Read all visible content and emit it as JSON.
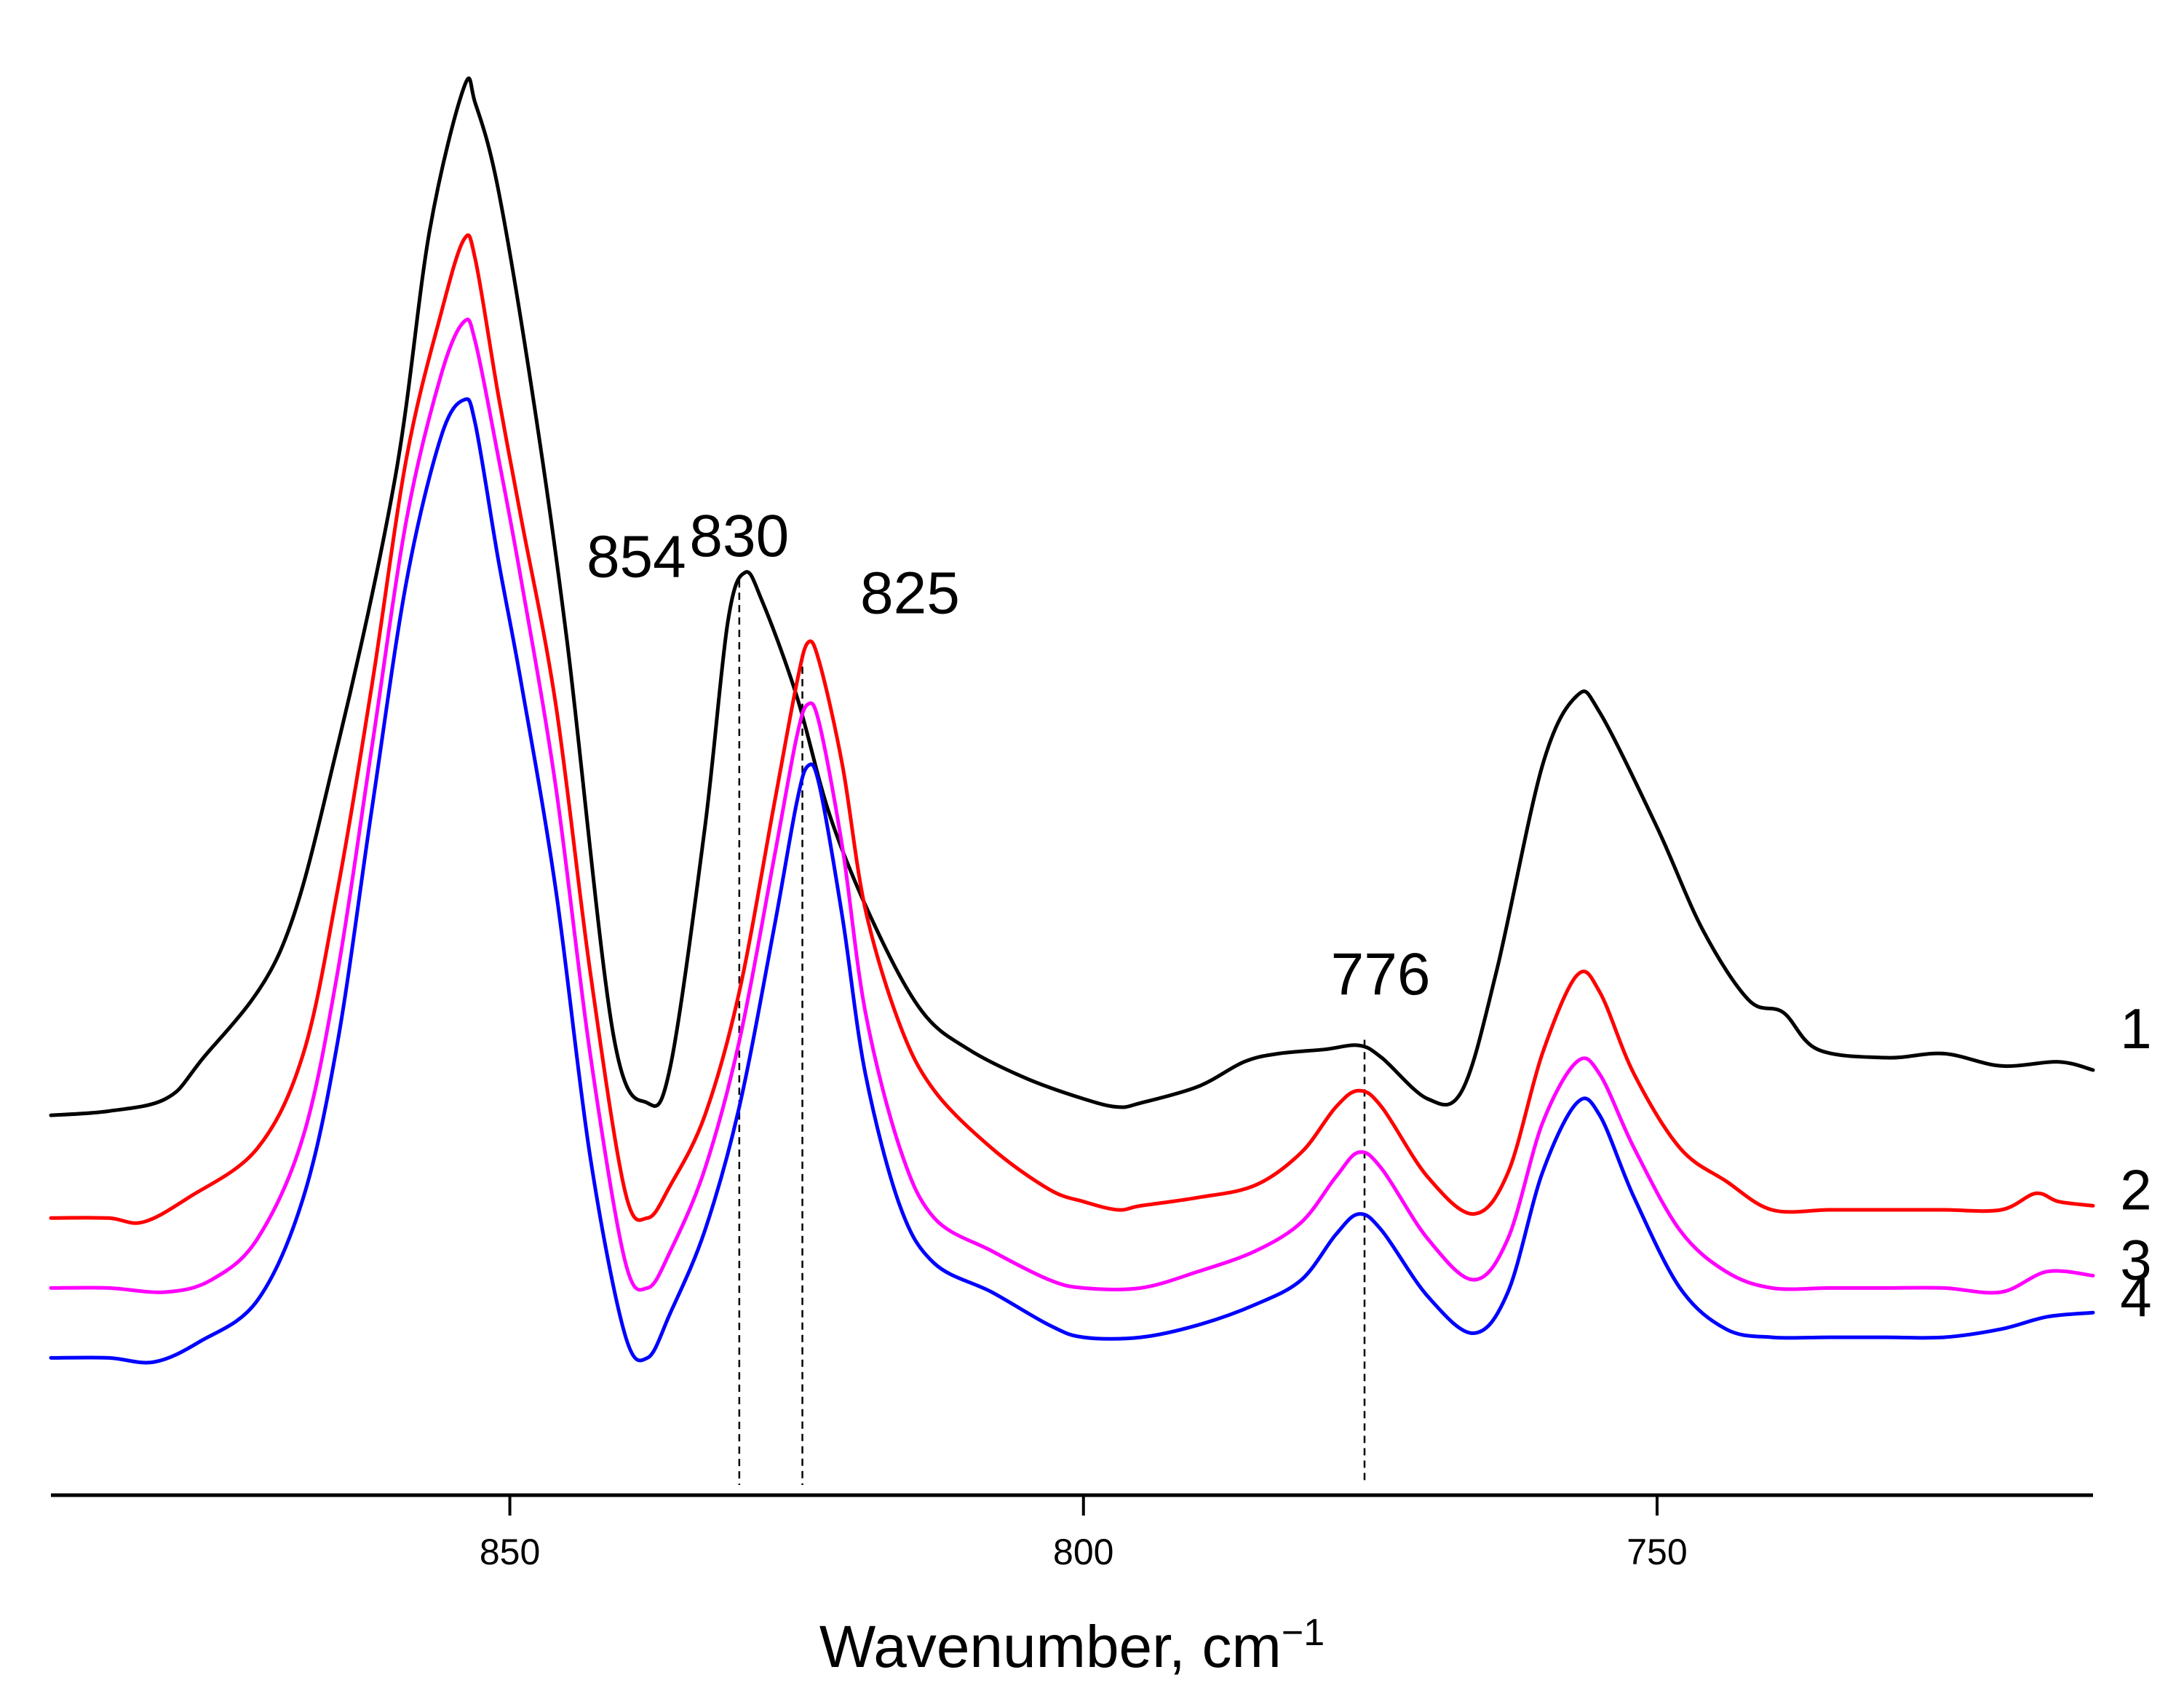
{
  "chart_data": {
    "type": "line",
    "title": "",
    "xlabel": "Wavenumber, cm",
    "xlabel_superscript": "−1",
    "ylabel": "",
    "x_reversed": true,
    "xlim": [
      890,
      712
    ],
    "xticks": [
      850,
      800,
      750
    ],
    "xtick_labels": [
      "850",
      "800",
      "750"
    ],
    "y_axis_shown": false,
    "grid": false,
    "peak_labels": [
      {
        "text": "854",
        "x": 845
      },
      {
        "text": "830",
        "x": 830
      },
      {
        "text": "825",
        "x": 824
      },
      {
        "text": "776",
        "x": 776
      }
    ],
    "reference_lines_x": [
      830,
      824.5,
      775.5
    ],
    "series": [
      {
        "name": "1",
        "color": "#000000",
        "points": [
          [
            890,
            0.8
          ],
          [
            885,
            0.81
          ],
          [
            880,
            0.84
          ],
          [
            877,
            0.93
          ],
          [
            870,
            1.2
          ],
          [
            865,
            1.7
          ],
          [
            860,
            2.35
          ],
          [
            857,
            2.95
          ],
          [
            854,
            3.3
          ],
          [
            853,
            3.26
          ],
          [
            851,
            3.05
          ],
          [
            848,
            2.55
          ],
          [
            845,
            1.95
          ],
          [
            841,
            1.0
          ],
          [
            838,
            0.83
          ],
          [
            836,
            0.92
          ],
          [
            833,
            1.5
          ],
          [
            831,
            2.0
          ],
          [
            829.5,
            2.12
          ],
          [
            828,
            2.05
          ],
          [
            825,
            1.82
          ],
          [
            822,
            1.52
          ],
          [
            818,
            1.25
          ],
          [
            814,
            1.05
          ],
          [
            810,
            0.96
          ],
          [
            805,
            0.89
          ],
          [
            800,
            0.84
          ],
          [
            797,
            0.82
          ],
          [
            795,
            0.83
          ],
          [
            790,
            0.87
          ],
          [
            786,
            0.93
          ],
          [
            783,
            0.95
          ],
          [
            779,
            0.96
          ],
          [
            776,
            0.97
          ],
          [
            774,
            0.94
          ],
          [
            770,
            0.84
          ],
          [
            767,
            0.86
          ],
          [
            764,
            1.15
          ],
          [
            760,
            1.65
          ],
          [
            757,
            1.82
          ],
          [
            755,
            1.78
          ],
          [
            750,
            1.5
          ],
          [
            746,
            1.25
          ],
          [
            742,
            1.08
          ],
          [
            739,
            1.05
          ],
          [
            736,
            0.96
          ],
          [
            730,
            0.94
          ],
          [
            725,
            0.95
          ],
          [
            720,
            0.92
          ],
          [
            715,
            0.93
          ],
          [
            712,
            0.91
          ]
        ]
      },
      {
        "name": "2",
        "color": "#ff0000",
        "points": [
          [
            890,
            0.55
          ],
          [
            885,
            0.55
          ],
          [
            882,
            0.54
          ],
          [
            878,
            0.6
          ],
          [
            872,
            0.72
          ],
          [
            868,
            0.95
          ],
          [
            865,
            1.35
          ],
          [
            862,
            1.85
          ],
          [
            859,
            2.4
          ],
          [
            856,
            2.75
          ],
          [
            854,
            2.93
          ],
          [
            853,
            2.88
          ],
          [
            851,
            2.55
          ],
          [
            849,
            2.25
          ],
          [
            846,
            1.8
          ],
          [
            843,
            1.15
          ],
          [
            840,
            0.62
          ],
          [
            838,
            0.55
          ],
          [
            836,
            0.63
          ],
          [
            833,
            0.8
          ],
          [
            830,
            1.1
          ],
          [
            827,
            1.55
          ],
          [
            825,
            1.85
          ],
          [
            824,
            1.95
          ],
          [
            823,
            1.9
          ],
          [
            821,
            1.65
          ],
          [
            819,
            1.3
          ],
          [
            816,
            1.02
          ],
          [
            813,
            0.86
          ],
          [
            808,
            0.72
          ],
          [
            803,
            0.62
          ],
          [
            800,
            0.59
          ],
          [
            797,
            0.57
          ],
          [
            795,
            0.58
          ],
          [
            790,
            0.6
          ],
          [
            785,
            0.63
          ],
          [
            781,
            0.71
          ],
          [
            778,
            0.82
          ],
          [
            776,
            0.86
          ],
          [
            774,
            0.82
          ],
          [
            770,
            0.65
          ],
          [
            766,
            0.56
          ],
          [
            763,
            0.66
          ],
          [
            760,
            0.95
          ],
          [
            757,
            1.14
          ],
          [
            755,
            1.1
          ],
          [
            752,
            0.9
          ],
          [
            748,
            0.72
          ],
          [
            744,
            0.64
          ],
          [
            740,
            0.57
          ],
          [
            735,
            0.57
          ],
          [
            730,
            0.57
          ],
          [
            725,
            0.57
          ],
          [
            720,
            0.57
          ],
          [
            717,
            0.61
          ],
          [
            715,
            0.59
          ],
          [
            712,
            0.58
          ]
        ]
      },
      {
        "name": "3",
        "color": "#ff00ff",
        "points": [
          [
            890,
            0.38
          ],
          [
            885,
            0.38
          ],
          [
            880,
            0.37
          ],
          [
            876,
            0.4
          ],
          [
            872,
            0.5
          ],
          [
            868,
            0.75
          ],
          [
            865,
            1.15
          ],
          [
            862,
            1.7
          ],
          [
            859,
            2.25
          ],
          [
            856,
            2.6
          ],
          [
            854,
            2.73
          ],
          [
            853,
            2.68
          ],
          [
            851,
            2.4
          ],
          [
            849,
            2.1
          ],
          [
            846,
            1.6
          ],
          [
            843,
            0.95
          ],
          [
            840,
            0.45
          ],
          [
            838,
            0.38
          ],
          [
            836,
            0.47
          ],
          [
            833,
            0.67
          ],
          [
            830,
            0.98
          ],
          [
            827,
            1.42
          ],
          [
            825,
            1.72
          ],
          [
            824,
            1.8
          ],
          [
            823,
            1.75
          ],
          [
            821,
            1.45
          ],
          [
            819,
            1.05
          ],
          [
            816,
            0.72
          ],
          [
            813,
            0.55
          ],
          [
            808,
            0.47
          ],
          [
            803,
            0.4
          ],
          [
            800,
            0.38
          ],
          [
            795,
            0.38
          ],
          [
            790,
            0.42
          ],
          [
            785,
            0.47
          ],
          [
            781,
            0.54
          ],
          [
            778,
            0.65
          ],
          [
            776,
            0.71
          ],
          [
            774,
            0.67
          ],
          [
            770,
            0.5
          ],
          [
            766,
            0.4
          ],
          [
            763,
            0.5
          ],
          [
            760,
            0.78
          ],
          [
            757,
            0.93
          ],
          [
            755,
            0.9
          ],
          [
            752,
            0.72
          ],
          [
            748,
            0.52
          ],
          [
            744,
            0.42
          ],
          [
            740,
            0.38
          ],
          [
            735,
            0.38
          ],
          [
            730,
            0.38
          ],
          [
            725,
            0.38
          ],
          [
            720,
            0.37
          ],
          [
            716,
            0.42
          ],
          [
            712,
            0.41
          ]
        ]
      },
      {
        "name": "4",
        "color": "#0000ff",
        "points": [
          [
            890,
            0.21
          ],
          [
            885,
            0.21
          ],
          [
            881,
            0.2
          ],
          [
            877,
            0.25
          ],
          [
            872,
            0.35
          ],
          [
            868,
            0.6
          ],
          [
            865,
            0.98
          ],
          [
            862,
            1.55
          ],
          [
            859,
            2.1
          ],
          [
            856,
            2.45
          ],
          [
            854,
            2.54
          ],
          [
            853,
            2.48
          ],
          [
            851,
            2.15
          ],
          [
            849,
            1.85
          ],
          [
            846,
            1.35
          ],
          [
            843,
            0.7
          ],
          [
            840,
            0.27
          ],
          [
            838,
            0.21
          ],
          [
            836,
            0.32
          ],
          [
            833,
            0.52
          ],
          [
            830,
            0.82
          ],
          [
            827,
            1.25
          ],
          [
            825,
            1.56
          ],
          [
            824,
            1.65
          ],
          [
            823,
            1.6
          ],
          [
            821,
            1.28
          ],
          [
            819,
            0.9
          ],
          [
            816,
            0.58
          ],
          [
            813,
            0.44
          ],
          [
            808,
            0.37
          ],
          [
            803,
            0.29
          ],
          [
            800,
            0.26
          ],
          [
            795,
            0.26
          ],
          [
            790,
            0.29
          ],
          [
            785,
            0.34
          ],
          [
            781,
            0.4
          ],
          [
            778,
            0.51
          ],
          [
            776,
            0.56
          ],
          [
            774,
            0.52
          ],
          [
            770,
            0.36
          ],
          [
            766,
            0.27
          ],
          [
            763,
            0.37
          ],
          [
            760,
            0.66
          ],
          [
            757,
            0.83
          ],
          [
            755,
            0.8
          ],
          [
            752,
            0.6
          ],
          [
            748,
            0.38
          ],
          [
            744,
            0.28
          ],
          [
            740,
            0.26
          ],
          [
            735,
            0.26
          ],
          [
            730,
            0.26
          ],
          [
            725,
            0.26
          ],
          [
            720,
            0.28
          ],
          [
            716,
            0.31
          ],
          [
            712,
            0.32
          ]
        ]
      }
    ]
  }
}
